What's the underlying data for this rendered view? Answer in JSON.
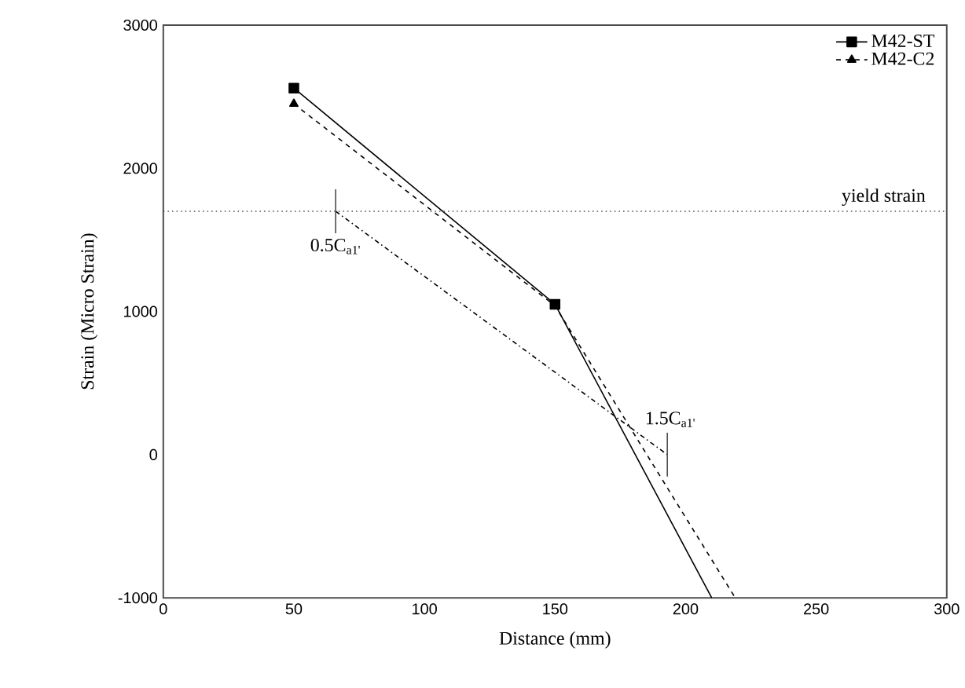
{
  "chart_data": {
    "type": "line",
    "xlabel": "Distance (mm)",
    "ylabel": "Strain (Micro Strain)",
    "xlim": [
      0,
      300
    ],
    "ylim": [
      -1000,
      3000
    ],
    "xticks": [
      0,
      50,
      100,
      150,
      200,
      250,
      300
    ],
    "yticks": [
      -1000,
      0,
      1000,
      2000,
      3000
    ],
    "series": [
      {
        "name": "M42-ST",
        "color": "#000000",
        "marker": "square",
        "line_style": "solid",
        "x": [
          50,
          150,
          210
        ],
        "values": [
          2560,
          1050,
          -1000
        ]
      },
      {
        "name": "M42-C2",
        "color": "#000000",
        "marker": "triangle",
        "line_style": "dashed",
        "x": [
          50,
          150,
          219
        ],
        "values": [
          2450,
          1040,
          -1000
        ]
      },
      {
        "color": "#000000",
        "marker": "none",
        "line_style": "dashdot",
        "x": [
          66,
          193
        ],
        "values": [
          1700,
          0
        ]
      }
    ],
    "ref_lines": [
      {
        "axis": "y",
        "value": 1700,
        "label": "yield strain",
        "line_style": "dotted",
        "color": "#555555"
      }
    ],
    "annotations": [
      {
        "text": "0.5C$_{a1'}$",
        "x": 66,
        "y": 1700
      },
      {
        "text": "1.5C$_{a1'}$",
        "x": 193,
        "y": 0
      }
    ],
    "legend": "top right",
    "grid": false
  }
}
